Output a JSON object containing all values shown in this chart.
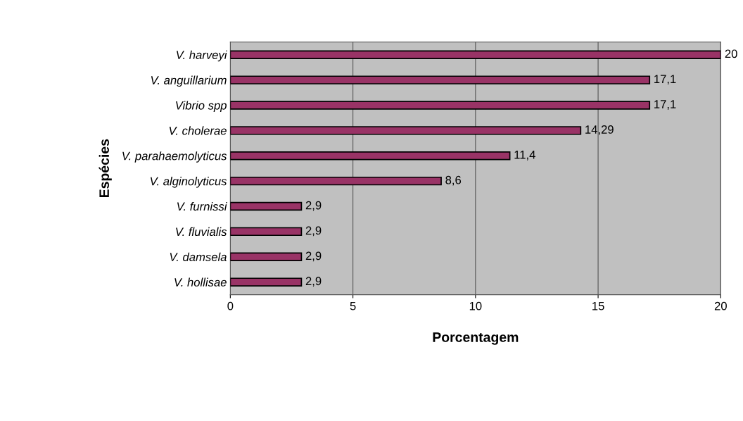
{
  "chart_data": {
    "type": "bar",
    "orientation": "horizontal",
    "xlabel": "Porcentagem",
    "ylabel": "Espécies",
    "categories": [
      "V. harveyi",
      "V. anguillarium",
      "Vibrio spp",
      "V. cholerae",
      "V. parahaemolyticus",
      "V. alginolyticus",
      "V. furnissi",
      "V. fluvialis",
      "V. damsela",
      "V. hollisae"
    ],
    "values": [
      20,
      17.1,
      17.1,
      14.29,
      11.4,
      8.6,
      2.9,
      2.9,
      2.9,
      2.9
    ],
    "value_labels": [
      "20",
      "17,1",
      "17,1",
      "14,29",
      "11,4",
      "8,6",
      "2,9",
      "2,9",
      "2,9",
      "2,9"
    ],
    "color": "#993366",
    "xlim": [
      0,
      20
    ],
    "xticks": [
      0,
      5,
      10,
      15,
      20
    ],
    "grid": "x"
  }
}
